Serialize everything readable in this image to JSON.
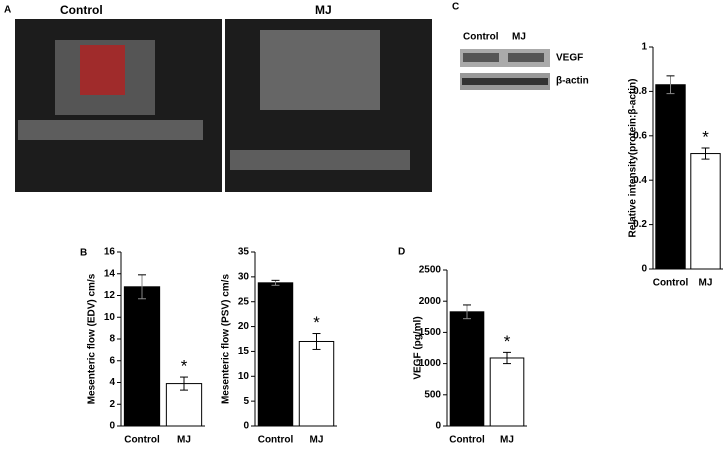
{
  "figure": {
    "panel_labels": [
      "A",
      "B",
      "C",
      "D"
    ],
    "image_titles": [
      "Control",
      "MJ"
    ],
    "blot_lanes": [
      "Control",
      "MJ"
    ],
    "blot_rows": [
      "VEGF",
      "β-actin"
    ]
  },
  "chart_data": [
    {
      "type": "bar",
      "y_label": "Relative intensity(protein:β-actin)",
      "categories": [
        "Control",
        "MJ"
      ],
      "values": [
        0.83,
        0.52
      ],
      "errors": [
        0.04,
        0.025
      ],
      "colors": [
        "#000000",
        "#ffffff"
      ],
      "ylim": [
        0,
        1
      ],
      "yticks": [
        0,
        0.2,
        0.4,
        0.6,
        0.8,
        1
      ],
      "annotation": "*"
    },
    {
      "type": "bar",
      "y_label": "Mesenteric flow (EDV) cm/s",
      "categories": [
        "Control",
        "MJ"
      ],
      "values": [
        12.8,
        3.9
      ],
      "errors": [
        1.1,
        0.6
      ],
      "colors": [
        "#000000",
        "#ffffff"
      ],
      "ylim": [
        0,
        16
      ],
      "yticks": [
        0,
        2,
        4,
        6,
        8,
        10,
        12,
        14,
        16
      ],
      "annotation": "*"
    },
    {
      "type": "bar",
      "y_label": "Mesenteric flow (PSV) cm/s",
      "categories": [
        "Control",
        "MJ"
      ],
      "values": [
        28.8,
        17.0
      ],
      "errors": [
        0.5,
        1.6
      ],
      "colors": [
        "#000000",
        "#ffffff"
      ],
      "ylim": [
        0,
        35
      ],
      "yticks": [
        0,
        5,
        10,
        15,
        20,
        25,
        30,
        35
      ],
      "annotation": "*"
    },
    {
      "type": "bar",
      "y_label": "VEGF (pg/ml)",
      "categories": [
        "Control",
        "MJ"
      ],
      "values": [
        1830,
        1090
      ],
      "errors": [
        110,
        90
      ],
      "colors": [
        "#000000",
        "#ffffff"
      ],
      "ylim": [
        0,
        2500
      ],
      "yticks": [
        0,
        500,
        1000,
        1500,
        2000,
        2500
      ],
      "annotation": "*"
    }
  ]
}
